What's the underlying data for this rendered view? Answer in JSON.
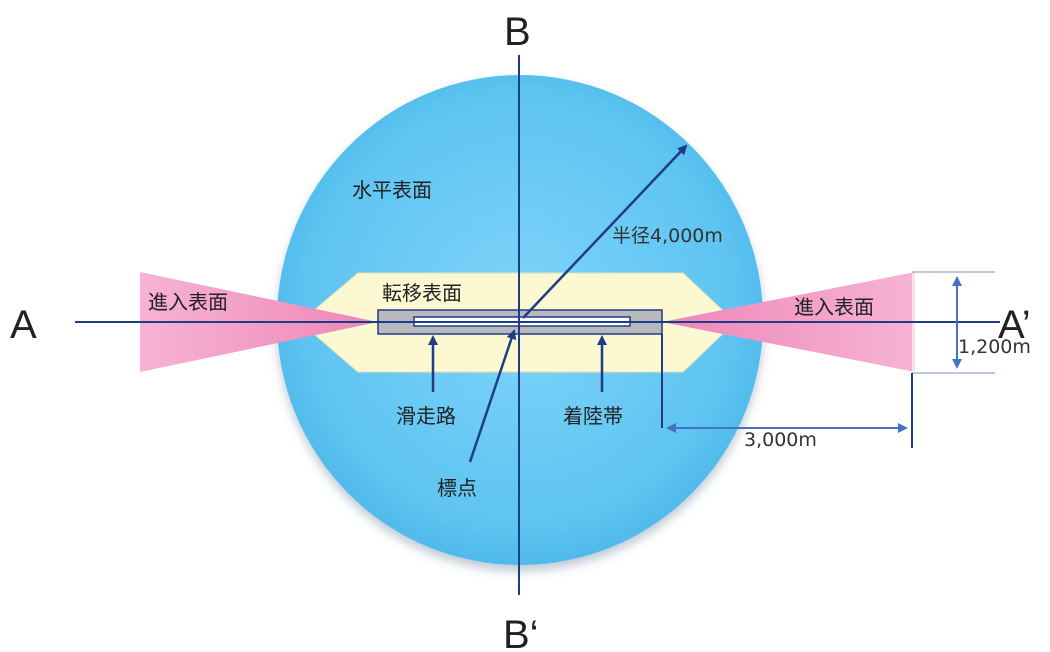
{
  "labels": {
    "horizontal_surface": "水平表面",
    "transitional_surface": "転移表面",
    "approach_surface_left": "進入表面",
    "approach_surface_right": "進入表面",
    "runway": "滑走路",
    "landing_strip": "着陸帯",
    "reference_point": "標点",
    "axis_a": "A",
    "axis_a_prime": "A’",
    "axis_b": "B",
    "axis_b_prime": "B‘",
    "radius": "半径4,000m",
    "approach_width": "1,200m",
    "approach_length": "3,000m"
  },
  "colors": {
    "horizontal_surface": "#5ec4f2",
    "transitional_surface": "#fbf8d2",
    "approach_surface": "#f29ac6",
    "landing_strip": "#b7b9bd",
    "lines": "#1f3c88",
    "dimension": "#4472c4"
  }
}
